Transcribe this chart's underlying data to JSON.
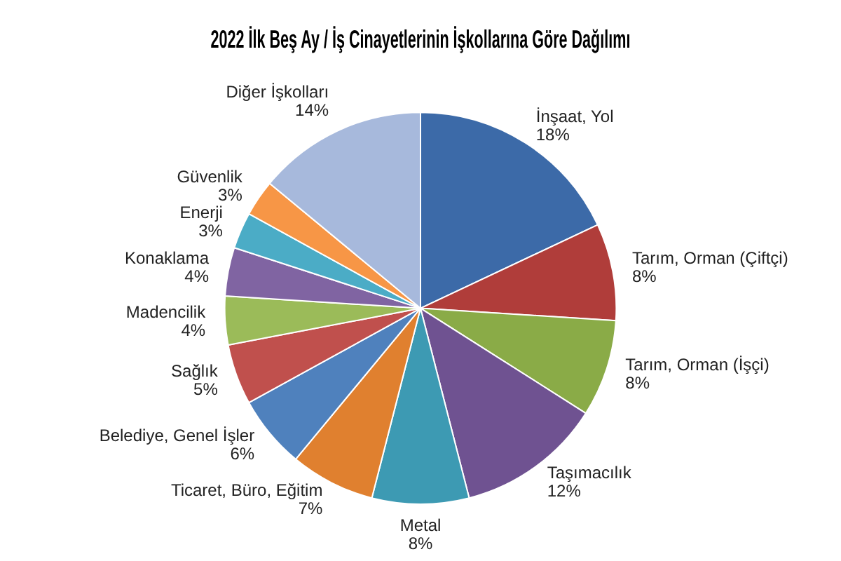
{
  "chart_data": {
    "type": "pie",
    "title": "2022 İlk Beş Ay / İş Cinayetlerinin İşkollarına Göre Dağılımı",
    "categories": [
      "İnşaat, Yol",
      "Tarım, Orman (Çiftçi)",
      "Tarım, Orman (İşçi)",
      "Taşımacılık",
      "Metal",
      "Ticaret, Büro, Eğitim",
      "Belediye, Genel İşler",
      "Sağlık",
      "Madencilik",
      "Konaklama",
      "Enerji",
      "Güvenlik",
      "Diğer İşkolları"
    ],
    "values": [
      18,
      8,
      8,
      12,
      8,
      7,
      6,
      5,
      4,
      4,
      3,
      3,
      14
    ],
    "value_labels": [
      "18%",
      "8%",
      "8%",
      "12%",
      "8%",
      "7%",
      "6%",
      "5%",
      "4%",
      "4%",
      "3%",
      "3%",
      "14%"
    ],
    "colors": [
      "#3c6aa8",
      "#b03d3a",
      "#8aab47",
      "#6f5291",
      "#3d9ab3",
      "#e0802f",
      "#4f81bd",
      "#c0504d",
      "#9bbb59",
      "#8064a2",
      "#4bacc6",
      "#f79646",
      "#a7b9dc"
    ],
    "legend": false
  }
}
